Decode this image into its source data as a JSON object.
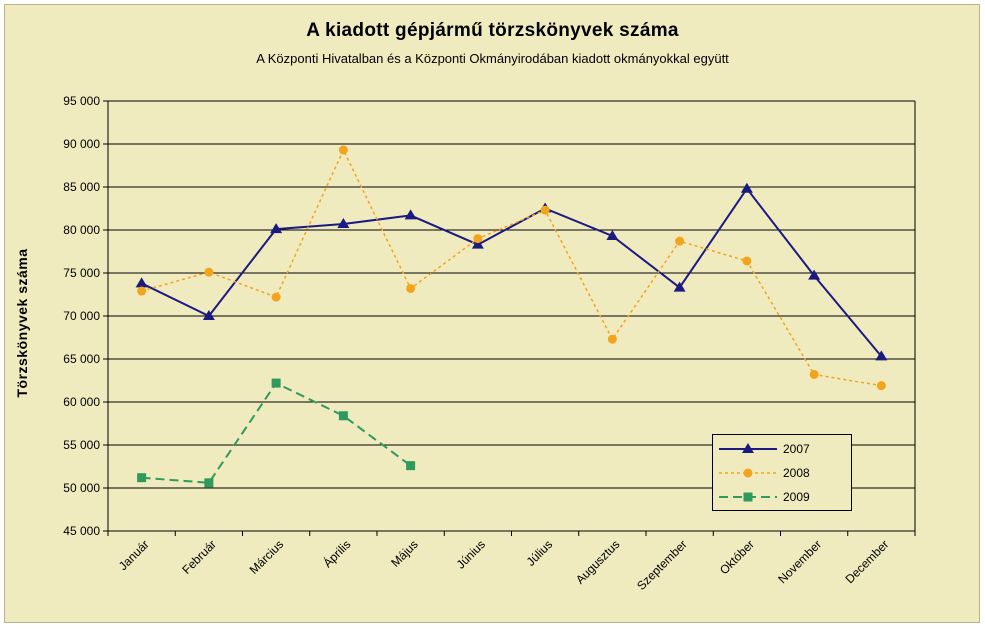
{
  "chart_data": {
    "type": "line",
    "title": "A  kiadott gépjármű  törzskönyvek száma",
    "subtitle": "A Központi Hivatalban és a Központi Okmányirodában kiadott okmányokkal együtt",
    "xlabel": "",
    "ylabel": "Törzskönyvek száma",
    "ylim": [
      45000,
      95000
    ],
    "yticks": [
      95000,
      90000,
      85000,
      80000,
      75000,
      70000,
      65000,
      60000,
      55000,
      50000,
      45000
    ],
    "ytick_labels": [
      "95 000",
      "90 000",
      "85 000",
      "80 000",
      "75 000",
      "70 000",
      "65 000",
      "60 000",
      "55 000",
      "50 000",
      "45 000"
    ],
    "categories": [
      "Január",
      "Február",
      "Március",
      "Április",
      "Május",
      "Június",
      "Július",
      "Augusztus",
      "Szeptember",
      "Október",
      "November",
      "December"
    ],
    "grid": "horizontal",
    "legend_position": "bottom-right",
    "series": [
      {
        "name": "2007",
        "color": "#1a1a80",
        "line_style": "solid",
        "marker": "triangle",
        "values": [
          73800,
          70000,
          80100,
          80700,
          81700,
          78300,
          82500,
          79300,
          73300,
          84800,
          74700,
          65300
        ]
      },
      {
        "name": "2008",
        "color": "#f2a41c",
        "line_style": "dotted",
        "marker": "circle",
        "values": [
          72900,
          75100,
          72200,
          89300,
          73200,
          79000,
          82300,
          67300,
          78700,
          76400,
          63200,
          61900
        ]
      },
      {
        "name": "2009",
        "color": "#2e9a5e",
        "line_style": "dashed",
        "marker": "square",
        "values": [
          51200,
          50600,
          62200,
          58400,
          52600,
          null,
          null,
          null,
          null,
          null,
          null,
          null
        ]
      }
    ]
  }
}
